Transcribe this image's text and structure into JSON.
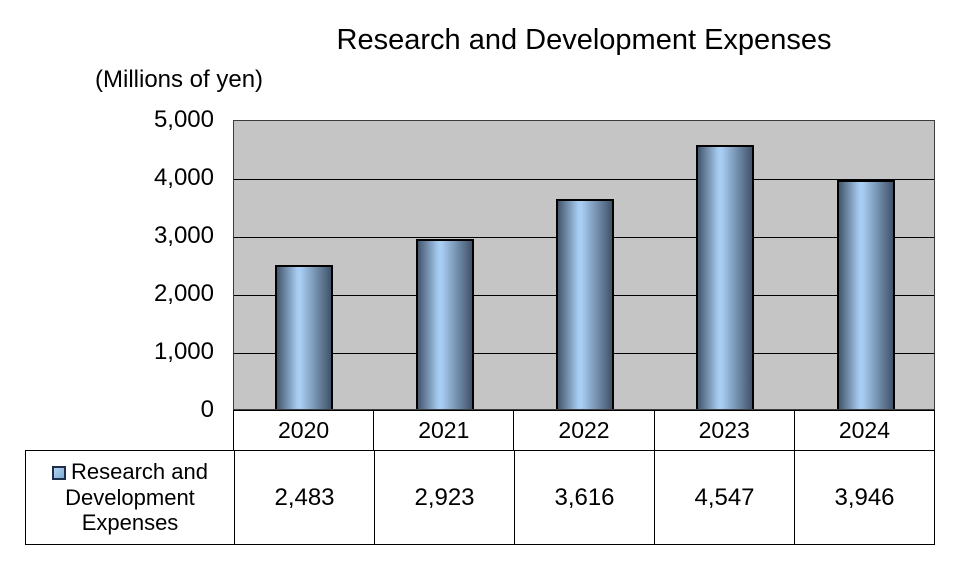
{
  "title": "Research and Development Expenses",
  "units_label": "(Millions of yen)",
  "chart_data": {
    "type": "bar",
    "title": "Research and Development Expenses",
    "categories": [
      "2020",
      "2021",
      "2022",
      "2023",
      "2024"
    ],
    "series": [
      {
        "name": "Research and Development Expenses",
        "values": [
          2483,
          2923,
          3616,
          4547,
          3946
        ]
      }
    ],
    "value_labels": [
      "2,483",
      "2,923",
      "3,616",
      "4,547",
      "3,946"
    ],
    "y_ticks": [
      "5,000",
      "4,000",
      "3,000",
      "2,000",
      "1,000",
      "0"
    ],
    "ylim": [
      0,
      5000
    ],
    "gridline_interval": 1000,
    "grid": true,
    "legend_position": "table-left",
    "xlabel": "",
    "ylabel": "(Millions of yen)",
    "colors": {
      "plot_bg": "#C5C5C5",
      "gridline": "#000000",
      "bar_border": "#000000",
      "bar_gradient": [
        "#44566C",
        "#A8CDF3",
        "#41536A"
      ],
      "legend_marker_fill": [
        "#B3D4EE",
        "#7FACD2"
      ],
      "legend_marker_border": "#1C2E4A",
      "table_border": "#000000",
      "table_bg": "#FFFFFF"
    }
  }
}
